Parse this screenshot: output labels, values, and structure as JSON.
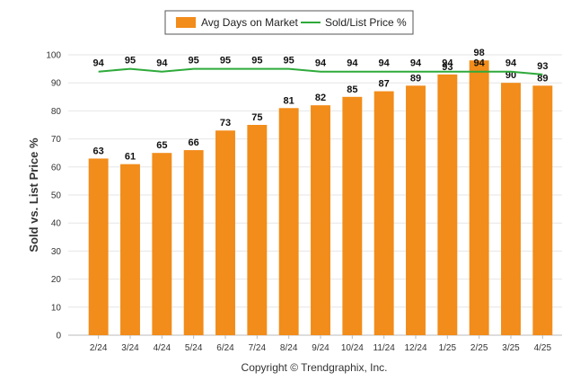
{
  "chart_data": {
    "type": "bar",
    "categories": [
      "2/24",
      "3/24",
      "4/24",
      "5/24",
      "6/24",
      "7/24",
      "8/24",
      "9/24",
      "10/24",
      "11/24",
      "12/24",
      "1/25",
      "2/25",
      "3/25",
      "4/25"
    ],
    "series": [
      {
        "name": "Avg Days on Market",
        "type": "bar",
        "color": "#f28c1a",
        "values": [
          63,
          61,
          65,
          66,
          73,
          75,
          81,
          82,
          85,
          87,
          89,
          93,
          98,
          90,
          89
        ]
      },
      {
        "name": "Sold/List Price %",
        "type": "line",
        "color": "#2eaa3a",
        "values": [
          94,
          95,
          94,
          95,
          95,
          95,
          95,
          94,
          94,
          94,
          94,
          94,
          94,
          94,
          93
        ]
      }
    ],
    "ylabel": "Sold vs. List Price %",
    "ylim": [
      0,
      100
    ],
    "yticks": [
      0,
      10,
      20,
      30,
      40,
      50,
      60,
      70,
      80,
      90,
      100
    ],
    "grid": true,
    "legend_position": "top-center"
  },
  "footer": {
    "copyright": "Copyright © Trendgraphix, Inc."
  }
}
